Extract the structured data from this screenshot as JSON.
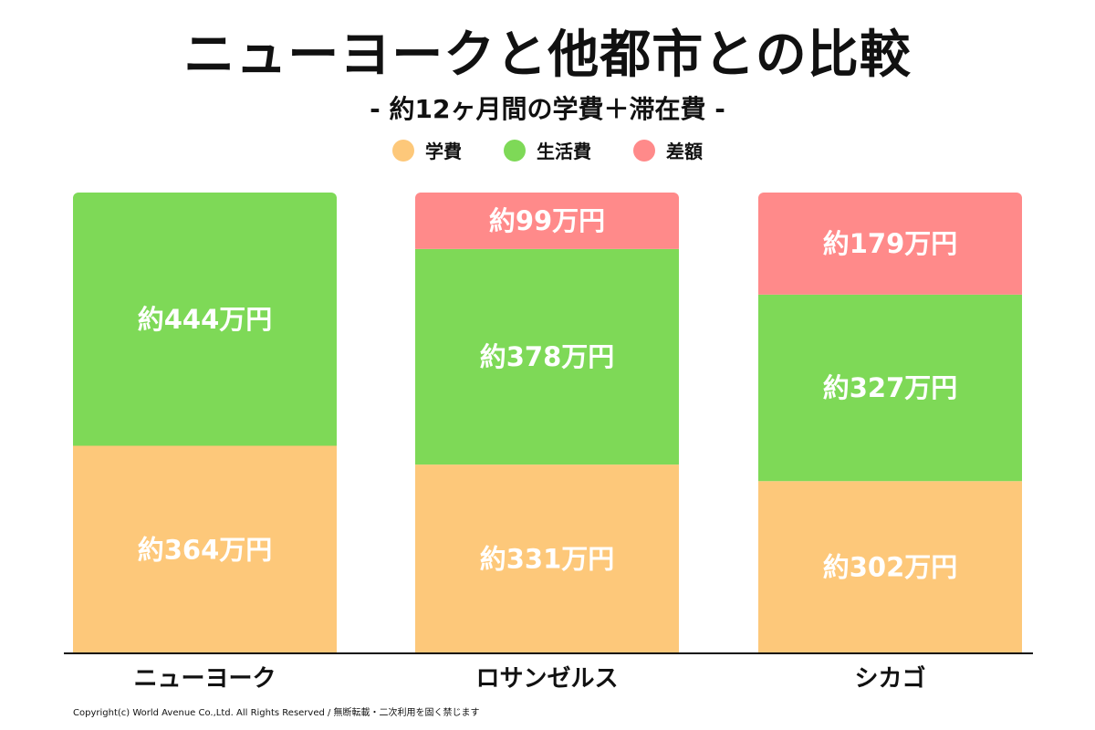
{
  "title": "ニューヨークと他都市との比較",
  "subtitle": "- 約12ヶ月間の学費＋滞在費 -",
  "footer": "Copyright(c) World Avenue Co.,Ltd. All Rights Reserved / 無断転載・二次利用を固く禁じます",
  "legend": [
    {
      "label": "学費",
      "color": "#FDC87A"
    },
    {
      "label": "生活費",
      "color": "#7ED957"
    },
    {
      "label": "差額",
      "color": "#FF8A8A"
    }
  ],
  "chart_data": {
    "type": "bar",
    "stacked": true,
    "unit_label_format": "約{v}万円",
    "categories": [
      "ニューヨーク",
      "ロサンゼルス",
      "シカゴ"
    ],
    "series": [
      {
        "name": "学費",
        "color": "#FDC87A",
        "values": [
          364,
          331,
          302
        ]
      },
      {
        "name": "生活費",
        "color": "#7ED957",
        "values": [
          444,
          378,
          327
        ]
      },
      {
        "name": "差額",
        "color": "#FF8A8A",
        "values": [
          0,
          99,
          179
        ]
      }
    ],
    "data_labels": [
      [
        "約364万円",
        "約331万円",
        "約302万円"
      ],
      [
        "約444万円",
        "約378万円",
        "約327万円"
      ],
      [
        "",
        "約99万円",
        "約179万円"
      ]
    ]
  }
}
